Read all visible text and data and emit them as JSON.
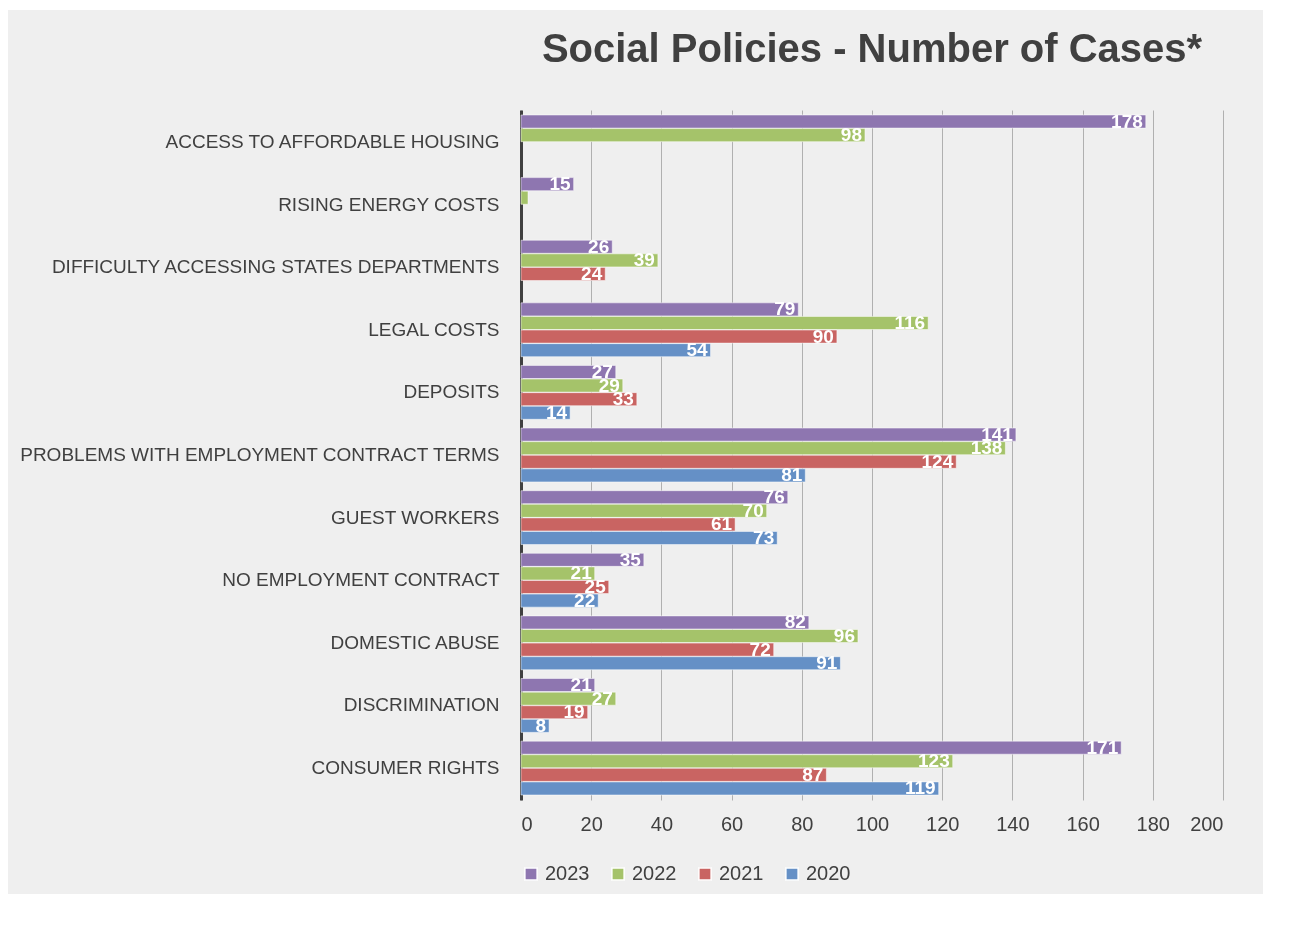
{
  "chart_data": {
    "type": "bar",
    "orientation": "horizontal",
    "title": "Social Policies - Number of Cases*",
    "categories": [
      "ACCESS TO AFFORDABLE HOUSING",
      "RISING ENERGY COSTS",
      "DIFFICULTY ACCESSING STATES DEPARTMENTS",
      "LEGAL COSTS",
      "DEPOSITS",
      "PROBLEMS WITH EMPLOYMENT CONTRACT TERMS",
      "GUEST WORKERS",
      "NO EMPLOYMENT CONTRACT",
      "DOMESTIC ABUSE",
      "DISCRIMINATION",
      "CONSUMER RIGHTS"
    ],
    "series": [
      {
        "name": "2023",
        "color": "#8e76b0",
        "values": [
          178,
          15,
          26,
          79,
          27,
          141,
          76,
          35,
          82,
          21,
          171
        ],
        "value_labels": [
          "178",
          "15",
          "26",
          "79",
          "27",
          "141",
          "76",
          "35",
          "82",
          "21",
          "171"
        ]
      },
      {
        "name": "2022",
        "color": "#a5c36a",
        "values": [
          98,
          2,
          39,
          116,
          29,
          138,
          70,
          21,
          96,
          27,
          123
        ],
        "value_labels": [
          "98",
          null,
          "39",
          "116",
          "29",
          "138",
          "70",
          "21",
          "96",
          "27",
          "123"
        ]
      },
      {
        "name": "2021",
        "color": "#c96462",
        "values": [
          null,
          null,
          24,
          90,
          33,
          124,
          61,
          25,
          72,
          19,
          87
        ],
        "value_labels": [
          null,
          null,
          "24",
          "90",
          "33",
          "124",
          "61",
          "25",
          "72",
          "19",
          "87"
        ]
      },
      {
        "name": "2020",
        "color": "#6590c6",
        "values": [
          null,
          null,
          null,
          54,
          14,
          81,
          73,
          22,
          91,
          8,
          119
        ],
        "value_labels": [
          null,
          null,
          null,
          "54",
          "14",
          "81",
          "73",
          "22",
          "91",
          "8",
          "119"
        ]
      }
    ],
    "xlim": [
      0,
      200
    ],
    "xticks": [
      0,
      20,
      40,
      60,
      80,
      100,
      120,
      140,
      160,
      180,
      200
    ],
    "grid": "x",
    "legend": "bottom"
  }
}
